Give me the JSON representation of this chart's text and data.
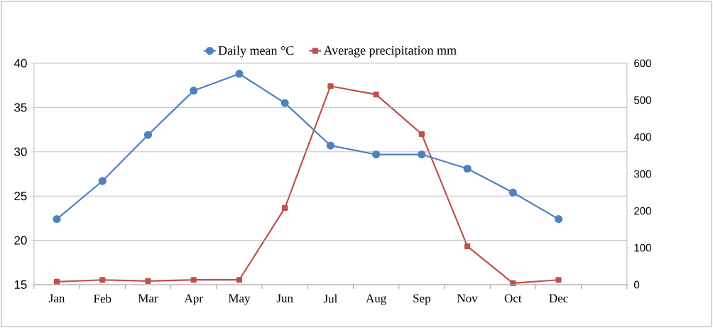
{
  "chart_data": {
    "type": "line",
    "categories": [
      "Jan",
      "Feb",
      "Mar",
      "Apr",
      "May",
      "Jun",
      "Jul",
      "Aug",
      "Sep",
      "Nov",
      "Oct",
      "Dec",
      null
    ],
    "series": [
      {
        "name": "Daily mean °C",
        "color": "#4f81bd",
        "marker": "circle",
        "values": [
          22.4,
          26.7,
          31.9,
          36.9,
          38.8,
          35.5,
          30.7,
          29.7,
          29.7,
          28.1,
          25.4,
          22.4,
          null
        ]
      },
      {
        "name": "Average precipitation mm",
        "color": "#c0504d",
        "marker": "square",
        "axis": "y2",
        "values": [
          8,
          13,
          10,
          13,
          13,
          208,
          538,
          515,
          408,
          104,
          4,
          13,
          null
        ]
      }
    ],
    "ylim": [
      15,
      40
    ],
    "yticks": [
      15,
      20,
      25,
      30,
      35,
      40
    ],
    "y2lim": [
      0,
      600
    ],
    "y2ticks": [
      0,
      100,
      200,
      300,
      400,
      500,
      600
    ],
    "grid": "y",
    "legend": "top"
  }
}
